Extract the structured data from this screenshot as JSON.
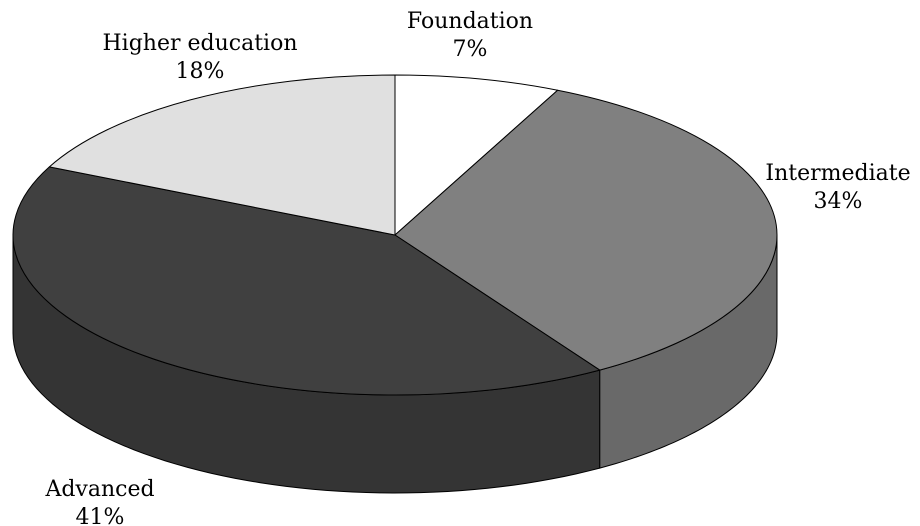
{
  "chart_data": {
    "type": "pie",
    "style": "3d",
    "slices": [
      {
        "label": "Foundation",
        "value": 7,
        "percent_label": "7%",
        "color": "#ffffff"
      },
      {
        "label": "Intermediate",
        "value": 34,
        "percent_label": "34%",
        "color": "#808080"
      },
      {
        "label": "Advanced",
        "value": 41,
        "percent_label": "41%",
        "color": "#404040"
      },
      {
        "label": "Higher education",
        "value": 18,
        "percent_label": "18%",
        "color": "#e0e0e0"
      }
    ],
    "legend": "none",
    "start_position": "12 o'clock",
    "direction": "clockwise"
  }
}
